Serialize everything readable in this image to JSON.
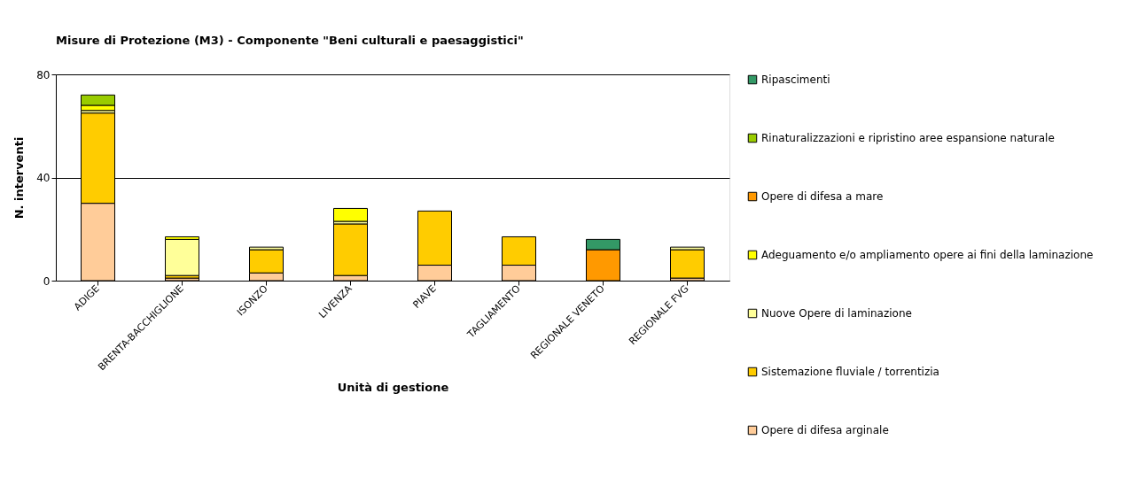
{
  "chart_data": {
    "type": "bar",
    "stacked": true,
    "title": "Misure di Protezione (M3) - Componente \"Beni culturali e paesaggistici\"",
    "xlabel": "Unità di gestione",
    "ylabel": "N. interventi",
    "categories": [
      "ADIGE",
      "BRENTA-BACCHIGLIONE",
      "ISONZO",
      "LIVENZA",
      "PIAVE",
      "TAGLIAMENTO",
      "REGIONALE VENETO",
      "REGIONALE FVG"
    ],
    "series": [
      {
        "name": "Opere di difesa arginale",
        "color": "#ffcc99",
        "values": [
          30,
          1,
          3,
          2,
          6,
          6,
          null,
          1
        ]
      },
      {
        "name": "Sistemazione fluviale / torrentizia",
        "color": "#ffcc00",
        "values": [
          35,
          1,
          9,
          20,
          21,
          11,
          null,
          11
        ]
      },
      {
        "name": "Nuove Opere di laminazione",
        "color": "#ffff99",
        "values": [
          1,
          14,
          1,
          1,
          null,
          null,
          null,
          1
        ]
      },
      {
        "name": "Adeguamento e/o ampliamento opere ai fini della laminazione",
        "color": "#ffff00",
        "values": [
          2,
          1,
          null,
          5,
          null,
          null,
          null,
          null
        ]
      },
      {
        "name": "Opere di difesa a mare",
        "color": "#ff9900",
        "values": [
          null,
          null,
          null,
          null,
          null,
          null,
          12,
          null
        ]
      },
      {
        "name": "Rinaturalizzazioni e ripristino aree espansione naturale",
        "color": "#99cc00",
        "values": [
          4,
          null,
          null,
          null,
          null,
          null,
          null,
          null
        ]
      },
      {
        "name": "Ripascimenti",
        "color": "#339966",
        "values": [
          null,
          null,
          null,
          null,
          null,
          null,
          4,
          null
        ]
      }
    ],
    "ylim": [
      0,
      80
    ],
    "yticks": [
      0,
      40,
      80
    ],
    "grid": "y",
    "legend": "right"
  }
}
